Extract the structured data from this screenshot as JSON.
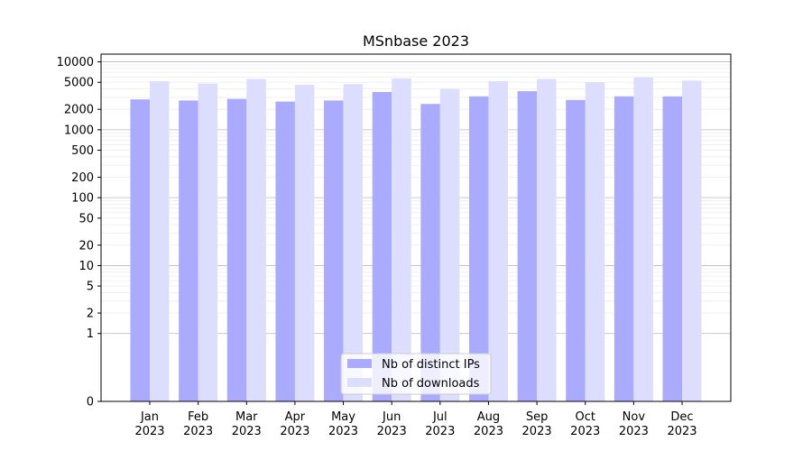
{
  "chart_data": {
    "type": "bar",
    "title": "MSnbase 2023",
    "xlabel": "",
    "ylabel": "",
    "yscale": "symlog",
    "ylim": [
      0,
      13000
    ],
    "grid": true,
    "legend_position": "lower-center",
    "categories": [
      {
        "month": "Jan",
        "year": "2023"
      },
      {
        "month": "Feb",
        "year": "2023"
      },
      {
        "month": "Mar",
        "year": "2023"
      },
      {
        "month": "Apr",
        "year": "2023"
      },
      {
        "month": "May",
        "year": "2023"
      },
      {
        "month": "Jun",
        "year": "2023"
      },
      {
        "month": "Jul",
        "year": "2023"
      },
      {
        "month": "Aug",
        "year": "2023"
      },
      {
        "month": "Sep",
        "year": "2023"
      },
      {
        "month": "Oct",
        "year": "2023"
      },
      {
        "month": "Nov",
        "year": "2023"
      },
      {
        "month": "Dec",
        "year": "2023"
      }
    ],
    "yticks": [
      "0",
      "1",
      "2",
      "5",
      "10",
      "20",
      "50",
      "100",
      "200",
      "500",
      "1000",
      "2000",
      "5000",
      "10000"
    ],
    "series": [
      {
        "name": "Nb of distinct IPs",
        "color": "#aaaaff",
        "values": [
          2800,
          2700,
          2850,
          2600,
          2700,
          3600,
          2400,
          3100,
          3700,
          2750,
          3100,
          3100
        ]
      },
      {
        "name": "Nb of downloads",
        "color": "#ddddff",
        "values": [
          5200,
          4800,
          5600,
          4600,
          4700,
          5700,
          4000,
          5200,
          5600,
          5000,
          5900,
          5300
        ]
      }
    ]
  }
}
